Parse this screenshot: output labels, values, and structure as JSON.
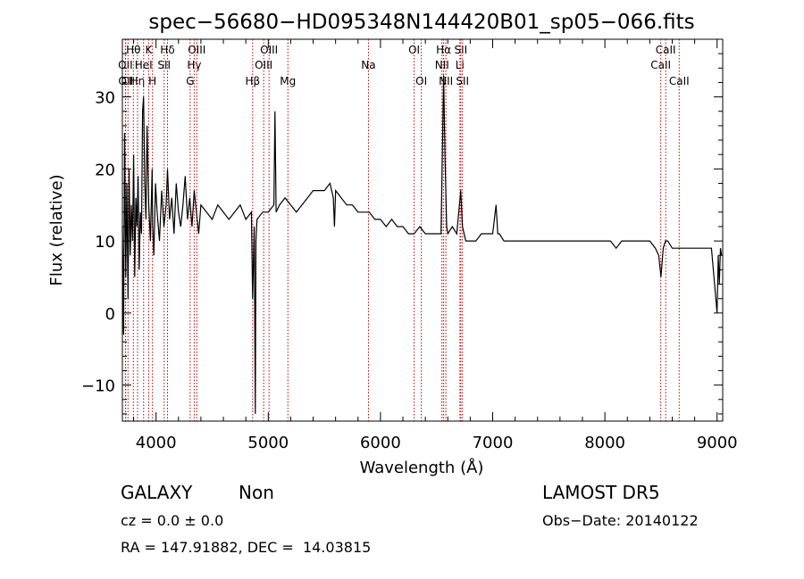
{
  "chart_data": {
    "type": "line",
    "title": "spec−56680−HD095348N144420B01_sp05−066.fits",
    "xlabel": "Wavelength (Å)",
    "ylabel": "Flux (relative)",
    "xlim": [
      3700,
      9050
    ],
    "ylim": [
      -15,
      38
    ],
    "x_ticks": [
      4000,
      5000,
      6000,
      7000,
      8000,
      9000
    ],
    "y_ticks": [
      -10,
      0,
      10,
      20,
      30
    ],
    "x_tick_labels": [
      "4000",
      "5000",
      "6000",
      "7000",
      "8000",
      "9000"
    ],
    "y_tick_labels": [
      "−10",
      "0",
      "10",
      "20",
      "30"
    ],
    "grid": false,
    "series": [
      {
        "color": "#000000",
        "x": [
          3700,
          3710,
          3720,
          3730,
          3740,
          3750,
          3760,
          3770,
          3780,
          3790,
          3800,
          3810,
          3820,
          3830,
          3840,
          3850,
          3860,
          3870,
          3880,
          3889,
          3900,
          3910,
          3920,
          3935,
          3950,
          3965,
          3970,
          3980,
          3995,
          4010,
          4030,
          4050,
          4070,
          4090,
          4102,
          4120,
          4140,
          4160,
          4180,
          4200,
          4220,
          4240,
          4260,
          4280,
          4300,
          4320,
          4340,
          4360,
          4380,
          4400,
          4450,
          4500,
          4550,
          4600,
          4650,
          4700,
          4750,
          4800,
          4850,
          4861,
          4875,
          4885,
          4890,
          4900,
          4950,
          5000,
          5050,
          5060,
          5070,
          5100,
          5150,
          5200,
          5250,
          5300,
          5350,
          5400,
          5450,
          5500,
          5550,
          5580,
          5590,
          5600,
          5650,
          5700,
          5750,
          5800,
          5850,
          5900,
          5950,
          6000,
          6050,
          6100,
          6150,
          6200,
          6250,
          6300,
          6350,
          6400,
          6450,
          6500,
          6540,
          6563,
          6575,
          6590,
          6600,
          6640,
          6680,
          6716,
          6731,
          6760,
          6800,
          6850,
          6900,
          6950,
          7000,
          7030,
          7045,
          7060,
          7100,
          7150,
          7200,
          7250,
          7300,
          7350,
          7400,
          7450,
          7500,
          7550,
          7600,
          7650,
          7700,
          7750,
          7800,
          7850,
          7900,
          7950,
          8000,
          8050,
          8100,
          8150,
          8200,
          8250,
          8300,
          8350,
          8400,
          8450,
          8480,
          8500,
          8520,
          8540,
          8560,
          8600,
          8650,
          8700,
          8750,
          8800,
          8850,
          8900,
          8950,
          9000,
          9010,
          9020,
          9030,
          9040
        ],
        "y": [
          12,
          -3,
          25,
          5,
          18,
          2,
          20,
          8,
          15,
          10,
          22,
          5,
          16,
          12,
          19,
          6,
          14,
          11,
          28,
          30,
          18,
          13,
          26,
          15,
          10,
          20,
          12,
          8,
          18,
          14,
          10,
          17,
          12,
          15,
          20,
          13,
          16,
          11,
          18,
          14,
          12,
          15,
          19,
          13,
          16,
          12,
          17,
          14,
          11,
          15,
          14,
          13,
          15,
          14,
          13,
          14,
          15,
          13,
          14,
          2,
          12,
          -14,
          10,
          13,
          14,
          14,
          15,
          28,
          14,
          15,
          16,
          15,
          14,
          15,
          16,
          17,
          17,
          17,
          18,
          16,
          12,
          17,
          16,
          15,
          15,
          14,
          14,
          14,
          13,
          13,
          12,
          13,
          12,
          12,
          11,
          11,
          12,
          11,
          11,
          11,
          11,
          33,
          22,
          12,
          11,
          12,
          11,
          17,
          12,
          10,
          10,
          10,
          11,
          11,
          11,
          15,
          11,
          11,
          10,
          10,
          10,
          10,
          10,
          10,
          10,
          10,
          10,
          10,
          10,
          10,
          10,
          10,
          10,
          10,
          10,
          10,
          10,
          10,
          9,
          10,
          10,
          10,
          10,
          10,
          10,
          9,
          8,
          5,
          9,
          10,
          10,
          9,
          9,
          9,
          9,
          9,
          9,
          9,
          9,
          0,
          8,
          4,
          9,
          8
        ]
      }
    ],
    "lines": [
      {
        "x": 3727,
        "label": "OII",
        "row": 1
      },
      {
        "x": 3729,
        "label": "OII",
        "row": 2
      },
      {
        "x": 3750,
        "label": "CII",
        "row": 2
      },
      {
        "x": 3798,
        "label": "Hθ",
        "row": 0
      },
      {
        "x": 3835,
        "label": "Hη",
        "row": 2
      },
      {
        "x": 3889,
        "label": "HeI",
        "row": 1
      },
      {
        "x": 3934,
        "label": "K",
        "row": 0
      },
      {
        "x": 3968,
        "label": "H",
        "row": 2
      },
      {
        "x": 4102,
        "label": "Hδ",
        "row": 0
      },
      {
        "x": 4072,
        "label": "SII",
        "row": 1
      },
      {
        "x": 4340,
        "label": "Hγ",
        "row": 1
      },
      {
        "x": 4363,
        "label": "OIII",
        "row": 0
      },
      {
        "x": 4304,
        "label": "G",
        "row": 2
      },
      {
        "x": 4861,
        "label": "Hβ",
        "row": 2
      },
      {
        "x": 4959,
        "label": "OIII",
        "row": 1
      },
      {
        "x": 5007,
        "label": "OIII",
        "row": 0
      },
      {
        "x": 5175,
        "label": "Mg",
        "row": 2
      },
      {
        "x": 5893,
        "label": "Na",
        "row": 1
      },
      {
        "x": 6300,
        "label": "OI",
        "row": 0
      },
      {
        "x": 6364,
        "label": "OI",
        "row": 2
      },
      {
        "x": 6548,
        "label": "NII",
        "row": 1
      },
      {
        "x": 6563,
        "label": "Hα",
        "row": 0
      },
      {
        "x": 6583,
        "label": "NII",
        "row": 2
      },
      {
        "x": 6708,
        "label": "Li",
        "row": 1
      },
      {
        "x": 6716,
        "label": "SII",
        "row": 0
      },
      {
        "x": 6731,
        "label": "SII",
        "row": 2
      },
      {
        "x": 8498,
        "label": "CaII",
        "row": 1
      },
      {
        "x": 8542,
        "label": "CaII",
        "row": 0
      },
      {
        "x": 8662,
        "label": "CaII",
        "row": 2
      }
    ]
  },
  "info": {
    "class": "GALAXY",
    "subclass": "Non",
    "cz": "cz = 0.0 ± 0.0",
    "radec": "RA = 147.91882, DEC =  14.03815",
    "survey": "LAMOST DR5",
    "obsdate": "Obs−Date: 20140122"
  }
}
